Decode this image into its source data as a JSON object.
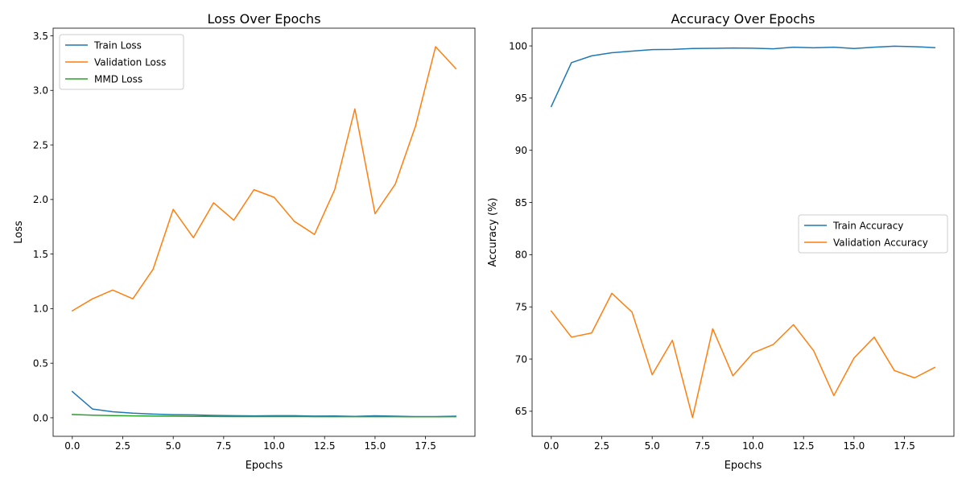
{
  "chart_data": [
    {
      "type": "line",
      "title": "Loss Over Epochs",
      "xlabel": "Epochs",
      "ylabel": "Loss",
      "xlim": [
        -0.95,
        19.95
      ],
      "ylim": [
        -0.17,
        3.57
      ],
      "xticks": [
        0,
        2.5,
        5,
        7.5,
        10,
        12.5,
        15,
        17.5
      ],
      "xtick_labels": [
        "0.0",
        "2.5",
        "5.0",
        "7.5",
        "10.0",
        "12.5",
        "15.0",
        "17.5"
      ],
      "yticks": [
        0,
        0.5,
        1.0,
        1.5,
        2.0,
        2.5,
        3.0,
        3.5
      ],
      "ytick_labels": [
        "0.0",
        "0.5",
        "1.0",
        "1.5",
        "2.0",
        "2.5",
        "3.0",
        "3.5"
      ],
      "grid": false,
      "legend": "upper left",
      "x": [
        0,
        1,
        2,
        3,
        4,
        5,
        6,
        7,
        8,
        9,
        10,
        11,
        12,
        13,
        14,
        15,
        16,
        17,
        18,
        19
      ],
      "series": [
        {
          "name": "Train Loss",
          "color": "#1f77b4",
          "values": [
            0.24,
            0.08,
            0.055,
            0.042,
            0.034,
            0.028,
            0.026,
            0.022,
            0.019,
            0.017,
            0.019,
            0.019,
            0.015,
            0.016,
            0.013,
            0.018,
            0.014,
            0.011,
            0.011,
            0.014
          ]
        },
        {
          "name": "Validation Loss",
          "color": "#ff7f0e",
          "values": [
            0.98,
            1.09,
            1.17,
            1.09,
            1.36,
            1.91,
            1.65,
            1.97,
            1.81,
            2.09,
            2.02,
            1.8,
            1.68,
            2.09,
            2.83,
            1.87,
            2.14,
            2.67,
            3.4,
            3.2
          ]
        },
        {
          "name": "MMD Loss",
          "color": "#2ca02c",
          "values": [
            0.03,
            0.024,
            0.02,
            0.017,
            0.015,
            0.014,
            0.013,
            0.012,
            0.011,
            0.011,
            0.011,
            0.011,
            0.01,
            0.01,
            0.01,
            0.01,
            0.01,
            0.009,
            0.009,
            0.01
          ]
        }
      ]
    },
    {
      "type": "line",
      "title": "Accuracy Over Epochs",
      "xlabel": "Epochs",
      "ylabel": "Accuracy (%)",
      "xlim": [
        -0.95,
        19.95
      ],
      "ylim": [
        62.6,
        101.7
      ],
      "xticks": [
        0,
        2.5,
        5,
        7.5,
        10,
        12.5,
        15,
        17.5
      ],
      "xtick_labels": [
        "0.0",
        "2.5",
        "5.0",
        "7.5",
        "10.0",
        "12.5",
        "15.0",
        "17.5"
      ],
      "yticks": [
        65,
        70,
        75,
        80,
        85,
        90,
        95,
        100
      ],
      "ytick_labels": [
        "65",
        "70",
        "75",
        "80",
        "85",
        "90",
        "95",
        "100"
      ],
      "grid": false,
      "legend": "center right",
      "x": [
        0,
        1,
        2,
        3,
        4,
        5,
        6,
        7,
        8,
        9,
        10,
        11,
        12,
        13,
        14,
        15,
        16,
        17,
        18,
        19
      ],
      "series": [
        {
          "name": "Train Accuracy",
          "color": "#1f77b4",
          "values": [
            94.2,
            98.4,
            99.05,
            99.35,
            99.5,
            99.65,
            99.67,
            99.75,
            99.77,
            99.8,
            99.78,
            99.72,
            99.88,
            99.82,
            99.88,
            99.75,
            99.88,
            99.97,
            99.93,
            99.83
          ]
        },
        {
          "name": "Validation Accuracy",
          "color": "#ff7f0e",
          "values": [
            74.6,
            72.1,
            72.5,
            76.3,
            74.5,
            68.5,
            71.8,
            64.4,
            72.9,
            68.4,
            70.6,
            71.4,
            73.3,
            70.8,
            66.5,
            70.1,
            72.1,
            68.9,
            68.2,
            69.2
          ]
        }
      ]
    }
  ]
}
